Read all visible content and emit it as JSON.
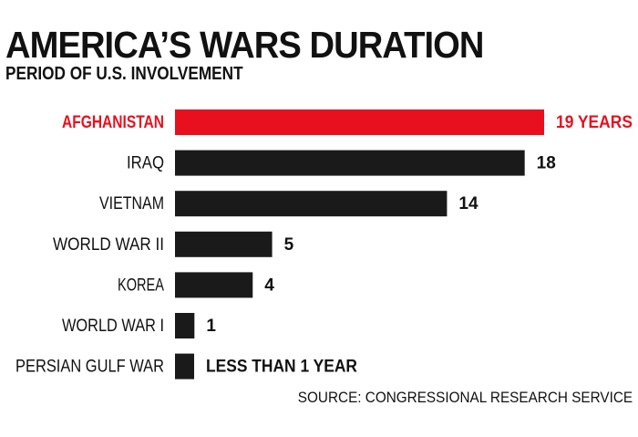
{
  "title": "AMERICA’S WARS DURATION",
  "subtitle": "PERIOD OF U.S. INVOLVEMENT",
  "source": "SOURCE: CONGRESSIONAL RESEARCH SERVICE",
  "colors": {
    "highlight": "#e8101f",
    "bar": "#1a1a1a",
    "text": "#111111"
  },
  "chart_data": {
    "type": "bar",
    "orientation": "horizontal",
    "categories": [
      "AFGHANISTAN",
      "IRAQ",
      "VIETNAM",
      "WORLD WAR II",
      "KOREA",
      "WORLD WAR I",
      "PERSIAN GULF WAR"
    ],
    "values": [
      19,
      18,
      14,
      5,
      4,
      1,
      0.5
    ],
    "data_labels": [
      "19 YEARS",
      "18",
      "14",
      "5",
      "4",
      "1",
      "LESS THAN 1 YEAR"
    ],
    "highlight_index": 0,
    "xlim": [
      0,
      19
    ],
    "grid": false,
    "legend": "none"
  }
}
